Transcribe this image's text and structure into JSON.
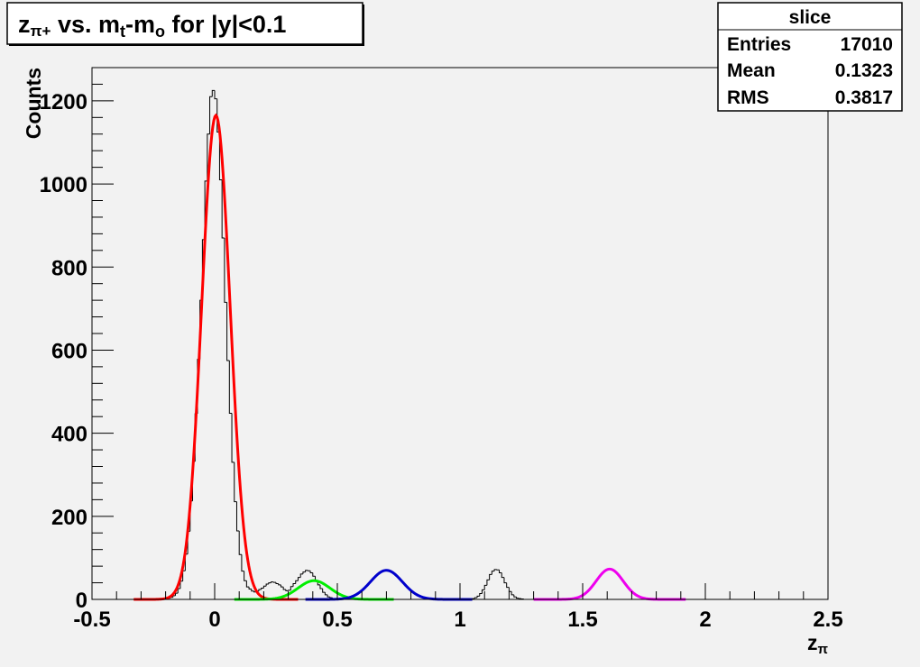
{
  "chart_data": {
    "type": "line",
    "title": {
      "z": "z",
      "pi_plus": "π+",
      "vs": " vs. m",
      "t": "t",
      "minus_m": "-m",
      "o": "o",
      "rest": " for |y|<0.1"
    },
    "xlabel": {
      "z": "z",
      "pi": "π"
    },
    "ylabel": "Counts",
    "xlim": [
      -0.5,
      2.5
    ],
    "ylim": [
      0,
      1280
    ],
    "x_ticks": [
      -0.5,
      0,
      0.5,
      1,
      1.5,
      2,
      2.5
    ],
    "x_tick_labels": [
      "-0.5",
      "0",
      "0.5",
      "1",
      "1.5",
      "2",
      "2.5"
    ],
    "y_ticks": [
      0,
      200,
      400,
      600,
      800,
      1000,
      1200
    ],
    "y_tick_labels": [
      "0",
      "200",
      "400",
      "600",
      "800",
      "1000",
      "1200"
    ],
    "grid": false,
    "stats": {
      "title": "slice",
      "rows": [
        {
          "label": "Entries",
          "value": "17010"
        },
        {
          "label": "Mean",
          "value": "0.1323"
        },
        {
          "label": "RMS",
          "value": "0.3817"
        }
      ]
    },
    "histogram": {
      "bin_width": 0.01,
      "x_start": -0.5,
      "color": "#000000",
      "counts": [
        0,
        0,
        0,
        0,
        0,
        0,
        0,
        0,
        0,
        0,
        0,
        0,
        0,
        0,
        0,
        0,
        0,
        0,
        0,
        0,
        0,
        0,
        0,
        0,
        0,
        0,
        0,
        0,
        1,
        1,
        2,
        3,
        5,
        9,
        15,
        26,
        44,
        69,
        109,
        164,
        237,
        332,
        447,
        578,
        720,
        866,
        1007,
        1120,
        1210,
        1225,
        1205,
        1125,
        1010,
        870,
        715,
        575,
        448,
        330,
        235,
        165,
        108,
        68,
        45,
        30,
        25,
        20,
        18,
        20,
        24,
        27,
        32,
        37,
        40,
        42,
        41,
        38,
        35,
        30,
        24,
        21,
        22,
        31,
        38,
        45,
        53,
        61,
        66,
        70,
        69,
        64,
        56,
        45,
        35,
        26,
        17,
        11,
        6,
        4,
        2,
        1,
        0,
        0,
        0,
        0,
        0,
        0,
        0,
        0,
        0,
        0,
        0,
        0,
        0,
        0,
        0,
        0,
        0,
        0,
        0,
        0,
        0,
        0,
        0,
        0,
        0,
        0,
        0,
        0,
        0,
        0,
        0,
        0,
        0,
        0,
        0,
        0,
        0,
        0,
        0,
        0,
        0,
        0,
        0,
        0,
        0,
        0,
        0,
        0,
        0,
        0,
        0,
        0,
        0,
        0,
        1,
        2,
        4,
        8,
        14,
        23,
        34,
        47,
        60,
        68,
        72,
        71,
        64,
        53,
        40,
        29,
        19,
        11,
        6,
        3,
        2,
        1,
        0,
        0,
        0,
        0,
        0,
        0,
        0,
        0,
        0,
        0,
        0,
        0,
        0,
        0,
        0,
        0,
        0,
        0,
        0,
        0,
        0,
        0,
        0,
        0,
        0,
        0,
        0,
        0,
        0,
        0,
        0,
        0,
        0,
        0,
        0,
        0,
        0,
        0,
        0,
        0,
        0,
        0,
        0,
        0,
        0,
        0,
        0,
        0,
        0,
        0,
        0,
        0,
        0,
        0,
        0,
        0,
        0,
        0,
        0,
        0,
        0,
        0,
        0,
        0,
        0,
        0,
        0,
        0,
        0,
        0,
        0,
        0,
        0,
        0,
        0,
        0,
        0,
        0,
        0,
        0,
        0,
        0,
        0,
        0,
        0,
        0,
        0,
        0,
        0,
        0,
        0,
        0,
        0,
        0,
        0,
        0,
        0,
        0,
        0,
        0,
        0,
        0,
        0,
        0,
        0
      ]
    },
    "series": [
      {
        "color": "#ff0000",
        "x_range": [
          -0.33,
          0.34
        ],
        "amplitude": 1165,
        "mean": 0.005,
        "sigma": 0.058
      },
      {
        "color": "#00ee00",
        "x_range": [
          0.08,
          0.73
        ],
        "amplitude": 45,
        "mean": 0.405,
        "sigma": 0.065
      },
      {
        "color": "#0000cc",
        "x_range": [
          0.37,
          1.05
        ],
        "amplitude": 70,
        "mean": 0.7,
        "sigma": 0.065
      },
      {
        "color": "#ee00ee",
        "x_range": [
          1.3,
          1.92
        ],
        "amplitude": 73,
        "mean": 1.61,
        "sigma": 0.055
      }
    ]
  }
}
